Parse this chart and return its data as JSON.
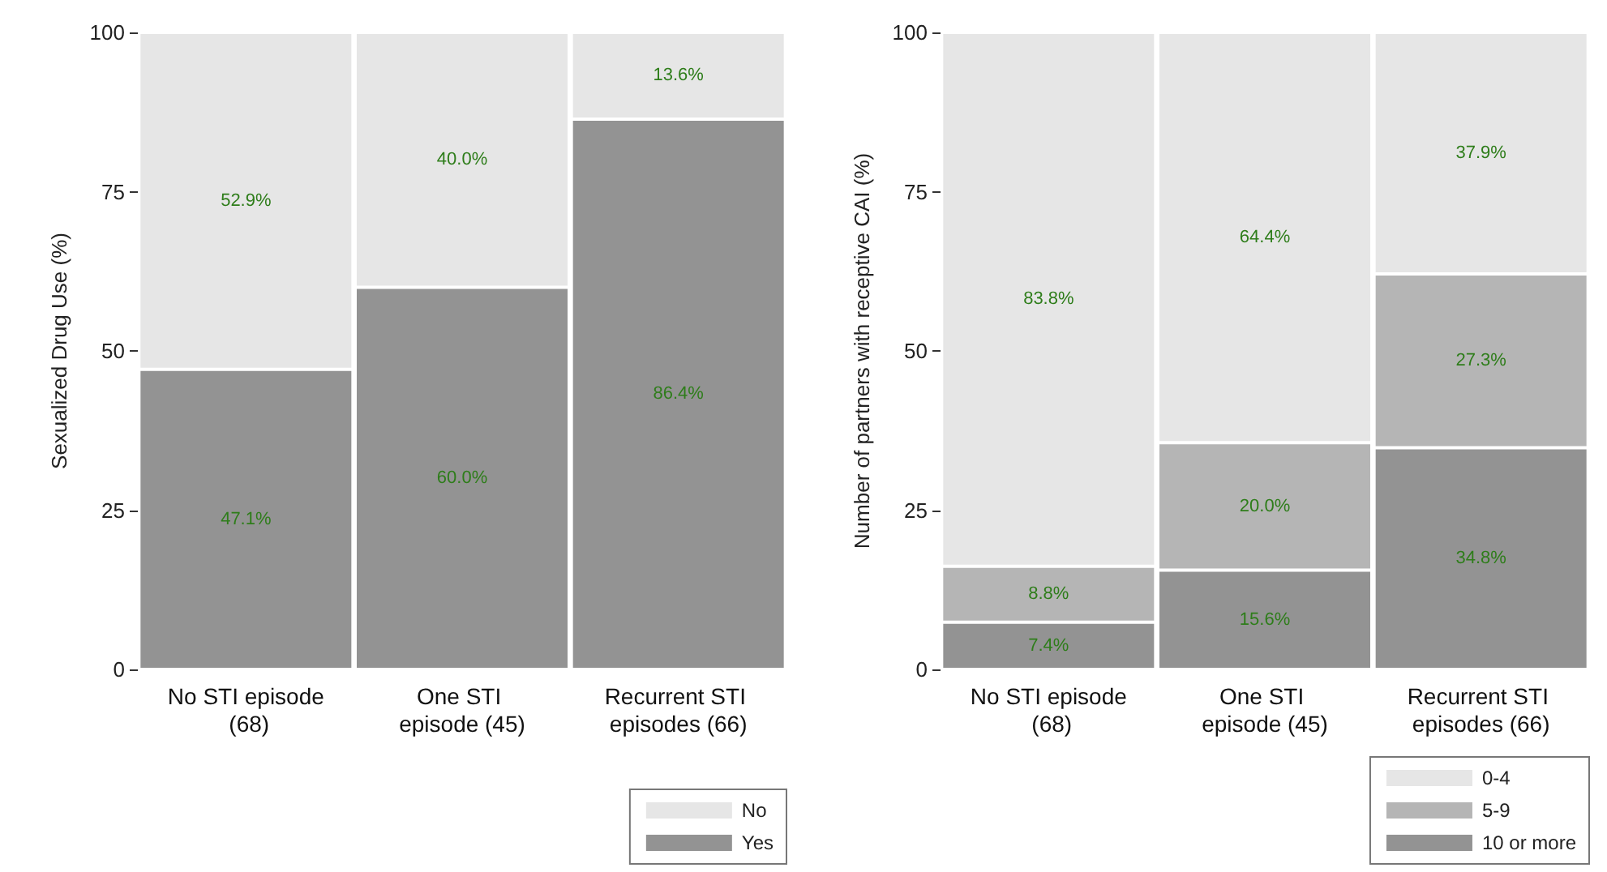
{
  "chart_data": [
    {
      "type": "bar",
      "stacked": true,
      "ylabel": "Sexualized Drug Use (%)",
      "categories": [
        "No STI episode (68)",
        "One STI episode (45)",
        "Recurrent STI episodes (66)"
      ],
      "ylim": [
        0,
        100
      ],
      "yticks": [
        0,
        25,
        50,
        75,
        100
      ],
      "grid": false,
      "legend": "bottom right",
      "series": [
        {
          "name": "Yes",
          "color": "#939393",
          "values": [
            47.1,
            60.0,
            86.4
          ],
          "value_labels": [
            "47.1%",
            "60.0%",
            "86.4%"
          ]
        },
        {
          "name": "No",
          "color": "#e6e6e6",
          "values": [
            52.9,
            40.0,
            13.6
          ],
          "value_labels": [
            "52.9%",
            "40.0%",
            "13.6%"
          ]
        }
      ]
    },
    {
      "type": "bar",
      "stacked": true,
      "ylabel": "Number of partners with receptive CAI (%)",
      "categories": [
        "No STI episode (68)",
        "One STI episode (45)",
        "Recurrent STI episodes (66)"
      ],
      "ylim": [
        0,
        100
      ],
      "yticks": [
        0,
        25,
        50,
        75,
        100
      ],
      "grid": false,
      "legend": "bottom right",
      "series": [
        {
          "name": "10 or more",
          "color": "#939393",
          "values": [
            7.4,
            15.6,
            34.8
          ],
          "value_labels": [
            "7.4%",
            "15.6%",
            "34.8%"
          ]
        },
        {
          "name": "5-9",
          "color": "#b5b5b5",
          "values": [
            8.8,
            20.0,
            27.3
          ],
          "value_labels": [
            "8.8%",
            "20.0%",
            "27.3%"
          ]
        },
        {
          "name": "0-4",
          "color": "#e6e6e6",
          "values": [
            83.8,
            64.4,
            37.9
          ],
          "value_labels": [
            "83.8%",
            "64.4%",
            "37.9%"
          ]
        }
      ]
    }
  ]
}
